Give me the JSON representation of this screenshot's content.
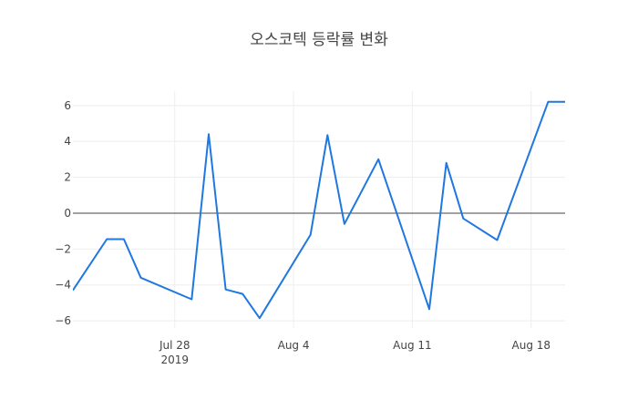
{
  "chart_data": {
    "type": "line",
    "title": "오스코텍 등락률 변화",
    "xlabel": "",
    "ylabel": "",
    "x": [
      "2019-07-22",
      "2019-07-24",
      "2019-07-25",
      "2019-07-26",
      "2019-07-29",
      "2019-07-30",
      "2019-07-31",
      "2019-08-01",
      "2019-08-02",
      "2019-08-05",
      "2019-08-06",
      "2019-08-07",
      "2019-08-08",
      "2019-08-09",
      "2019-08-12",
      "2019-08-13",
      "2019-08-14",
      "2019-08-16",
      "2019-08-19",
      "2019-08-20"
    ],
    "series": [
      {
        "values": [
          -4.3,
          -1.45,
          -1.45,
          -3.6,
          -4.8,
          4.4,
          -4.25,
          -4.5,
          -5.85,
          -1.2,
          4.35,
          -0.6,
          1.2,
          3.0,
          -5.35,
          2.8,
          -0.3,
          -1.5,
          6.2,
          6.2
        ]
      }
    ],
    "xlim": [
      "2019-07-22",
      "2019-08-20"
    ],
    "ylim": [
      -6.4,
      6.8
    ],
    "x_tick_labels": [
      "Jul 28",
      "Aug 4",
      "Aug 11",
      "Aug 18"
    ],
    "x_tick_dates": [
      "2019-07-28",
      "2019-08-04",
      "2019-08-11",
      "2019-08-18"
    ],
    "x_year_label": "2019",
    "y_ticks": [
      -6,
      -4,
      -2,
      0,
      2,
      4,
      6
    ],
    "y_tick_labels": [
      "−6",
      "−4",
      "−2",
      "0",
      "2",
      "4",
      "6"
    ],
    "grid": true,
    "zero_line": true,
    "line_color": "#1f77e0"
  }
}
